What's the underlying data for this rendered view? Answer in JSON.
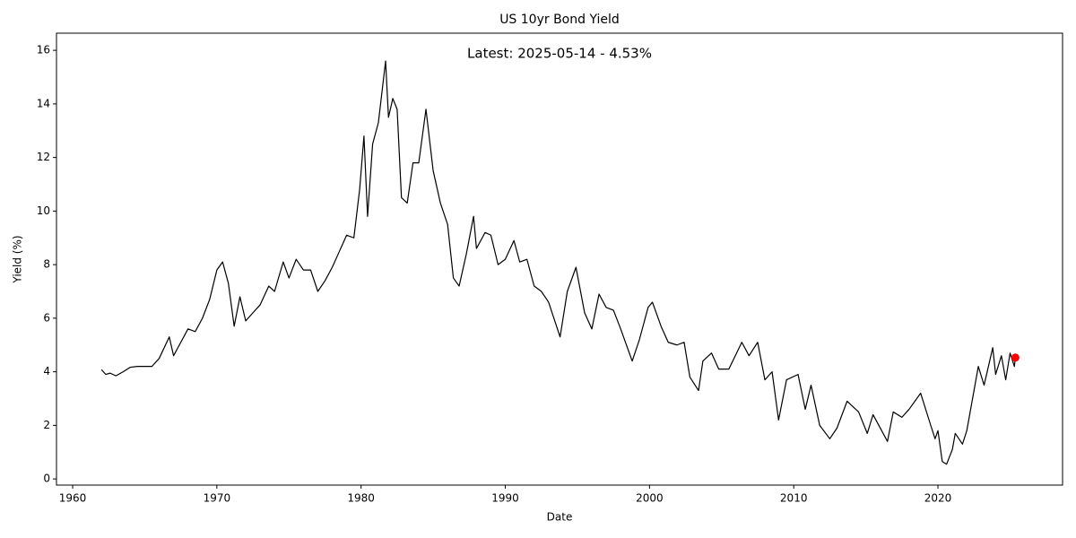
{
  "chart_data": {
    "type": "line",
    "title": "US 10yr Bond Yield",
    "xlabel": "Date",
    "ylabel": "Yield (%)",
    "annotation": "Latest: 2025-05-14 - 4.53%",
    "color": "#000000",
    "x": [
      1962.0,
      1962.3,
      1962.6,
      1963.0,
      1963.5,
      1964.0,
      1964.5,
      1965.0,
      1965.5,
      1966.0,
      1966.7,
      1967.0,
      1967.5,
      1968.0,
      1968.5,
      1969.0,
      1969.5,
      1970.0,
      1970.4,
      1970.8,
      1971.2,
      1971.6,
      1972.0,
      1972.5,
      1973.0,
      1973.6,
      1974.0,
      1974.6,
      1975.0,
      1975.5,
      1976.0,
      1976.5,
      1977.0,
      1977.5,
      1978.0,
      1978.5,
      1979.0,
      1979.5,
      1979.9,
      1980.2,
      1980.45,
      1980.8,
      1981.2,
      1981.7,
      1981.9,
      1982.2,
      1982.5,
      1982.8,
      1983.2,
      1983.6,
      1984.0,
      1984.5,
      1985.0,
      1985.5,
      1986.0,
      1986.4,
      1986.8,
      1987.3,
      1987.8,
      1988.0,
      1988.6,
      1989.0,
      1989.5,
      1990.0,
      1990.6,
      1991.0,
      1991.5,
      1992.0,
      1992.5,
      1993.0,
      1993.8,
      1994.3,
      1994.9,
      1995.5,
      1996.0,
      1996.5,
      1997.0,
      1997.5,
      1998.0,
      1998.8,
      1999.3,
      1999.9,
      2000.2,
      2000.8,
      2001.3,
      2001.9,
      2002.4,
      2002.8,
      2003.4,
      2003.7,
      2004.3,
      2004.8,
      2005.5,
      2006.4,
      2006.9,
      2007.5,
      2008.0,
      2008.5,
      2008.95,
      2009.5,
      2010.3,
      2010.8,
      2011.2,
      2011.8,
      2012.5,
      2013.0,
      2013.7,
      2014.5,
      2015.1,
      2015.5,
      2016.5,
      2016.9,
      2017.5,
      2018.0,
      2018.8,
      2019.5,
      2019.8,
      2020.0,
      2020.3,
      2020.6,
      2021.0,
      2021.2,
      2021.7,
      2022.0,
      2022.4,
      2022.8,
      2023.2,
      2023.8,
      2024.0,
      2024.4,
      2024.7,
      2025.0,
      2025.3,
      2025.37
    ],
    "values": [
      4.08,
      3.9,
      3.95,
      3.85,
      4.0,
      4.17,
      4.2,
      4.2,
      4.2,
      4.5,
      5.3,
      4.6,
      5.1,
      5.6,
      5.5,
      6.0,
      6.7,
      7.8,
      8.1,
      7.3,
      5.7,
      6.8,
      5.9,
      6.2,
      6.5,
      7.2,
      7.0,
      8.1,
      7.5,
      8.2,
      7.8,
      7.8,
      7.0,
      7.4,
      7.9,
      8.5,
      9.1,
      9.0,
      10.8,
      12.8,
      9.8,
      12.5,
      13.3,
      15.6,
      13.5,
      14.2,
      13.8,
      10.5,
      10.3,
      11.8,
      11.8,
      13.8,
      11.5,
      10.3,
      9.5,
      7.5,
      7.2,
      8.4,
      9.8,
      8.6,
      9.2,
      9.1,
      8.0,
      8.2,
      8.9,
      8.1,
      8.2,
      7.2,
      7.0,
      6.6,
      5.3,
      7.0,
      7.9,
      6.2,
      5.6,
      6.9,
      6.4,
      6.3,
      5.6,
      4.4,
      5.2,
      6.4,
      6.6,
      5.7,
      5.1,
      5.0,
      5.1,
      3.8,
      3.3,
      4.4,
      4.7,
      4.1,
      4.1,
      5.1,
      4.6,
      5.1,
      3.7,
      4.0,
      2.2,
      3.7,
      3.9,
      2.6,
      3.5,
      2.0,
      1.5,
      1.9,
      2.9,
      2.5,
      1.7,
      2.4,
      1.4,
      2.5,
      2.3,
      2.6,
      3.2,
      2.0,
      1.5,
      1.8,
      0.65,
      0.55,
      1.1,
      1.7,
      1.3,
      1.8,
      3.0,
      4.2,
      3.5,
      4.9,
      3.9,
      4.6,
      3.7,
      4.7,
      4.2,
      4.53
    ],
    "latest": {
      "x": 2025.37,
      "value": 4.53,
      "color": "#ff0000"
    },
    "xlim": [
      1958.88,
      2028.64
    ],
    "xticks": [
      1960,
      1970,
      1980,
      1990,
      2000,
      2010,
      2020
    ],
    "ylim": [
      -0.23,
      16.64
    ],
    "yticks": [
      0,
      2,
      4,
      6,
      8,
      10,
      12,
      14,
      16
    ],
    "grid": false
  }
}
